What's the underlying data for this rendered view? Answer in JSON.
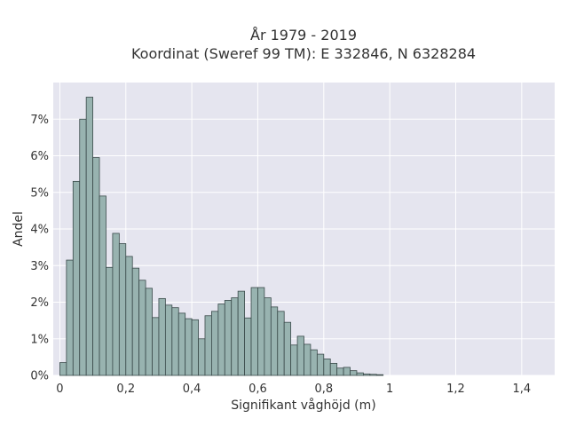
{
  "chart_data": {
    "type": "bar",
    "title_lines": [
      "År 1979 - 2019",
      "Koordinat (Sweref 99 TM): E 332846, N 6328284"
    ],
    "xlabel": "Signifikant våghöjd (m)",
    "ylabel": "Andel",
    "bin_width": 0.02,
    "bin_start": 0.01,
    "values": [
      0.35,
      3.15,
      5.3,
      7.0,
      7.6,
      5.95,
      4.9,
      2.95,
      3.88,
      3.6,
      3.25,
      2.93,
      2.6,
      2.38,
      1.58,
      2.1,
      1.92,
      1.85,
      1.7,
      1.55,
      1.52,
      1.0,
      1.63,
      1.75,
      1.95,
      2.05,
      2.12,
      2.3,
      1.57,
      2.4,
      2.4,
      2.12,
      1.87,
      1.75,
      1.45,
      0.83,
      1.07,
      0.85,
      0.7,
      0.58,
      0.45,
      0.33,
      0.2,
      0.22,
      0.13,
      0.07,
      0.04,
      0.03,
      0.02
    ],
    "xlim": [
      -0.02,
      1.5
    ],
    "ylim": [
      0,
      8.0
    ],
    "xticks": [
      0,
      0.2,
      0.4,
      0.6,
      0.8,
      1.0,
      1.2,
      1.4
    ],
    "xtick_labels": [
      "0",
      "0,2",
      "0,4",
      "0,6",
      "0,8",
      "1",
      "1,2",
      "1,4"
    ],
    "yticks": [
      0,
      1,
      2,
      3,
      4,
      5,
      6,
      7
    ],
    "ytick_labels": [
      "0%",
      "1%",
      "2%",
      "3%",
      "4%",
      "5%",
      "6%",
      "7%"
    ],
    "grid": true,
    "colors": {
      "bar": "#98b3b0",
      "bar_edge": "#3a4a4a",
      "plot_bg": "#e5e5ef",
      "grid": "#ffffff"
    }
  }
}
